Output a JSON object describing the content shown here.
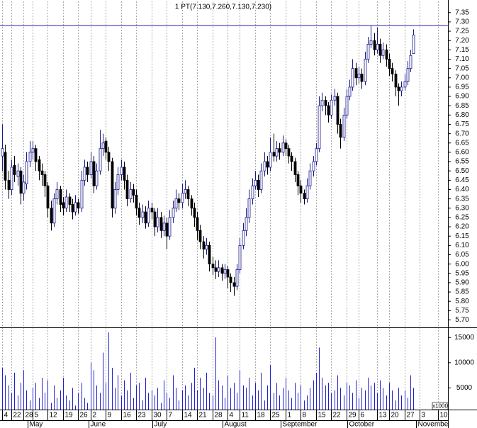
{
  "chart_data": {
    "type": "candlestick",
    "title": "1 PT(7.130,7.260,7.130,7.230)",
    "up_color": "#1a1a8c",
    "down_color": "#000000",
    "volume_color": "#2222cc",
    "reference_color": "#2020b0",
    "reference_line": 7.28,
    "ylim": [
      5.66,
      7.41
    ],
    "yticks": [
      {
        "value": 5.7,
        "label": "5.70"
      },
      5.75,
      {
        "value": 5.8,
        "label": "5.80"
      },
      5.85,
      {
        "value": 5.9,
        "label": "5.90"
      },
      5.95,
      {
        "value": 6,
        "label": "6.00"
      },
      6.05,
      {
        "value": 6.1,
        "label": "6.10"
      },
      6.15,
      {
        "value": 6.2,
        "label": "6.20"
      },
      6.25,
      {
        "value": 6.3,
        "label": "6.30"
      },
      6.35,
      {
        "value": 6.4,
        "label": "6.40"
      },
      6.45,
      {
        "value": 6.5,
        "label": "6.50"
      },
      6.55,
      {
        "value": 6.6,
        "label": "6.60"
      },
      6.65,
      {
        "value": 6.7,
        "label": "6.70"
      },
      6.75,
      {
        "value": 6.8,
        "label": "6.80"
      },
      6.85,
      {
        "value": 6.9,
        "label": "6.90"
      },
      6.95,
      {
        "value": 7,
        "label": "7.00"
      },
      7.05,
      {
        "value": 7.1,
        "label": "7.10"
      },
      7.15,
      {
        "value": 7.2,
        "label": "7.20"
      },
      7.25,
      {
        "value": 7.3,
        "label": "7.30"
      },
      7.35
    ],
    "y2lim": [
      0,
      17000
    ],
    "y2ticks": [
      5000,
      10000,
      15000
    ],
    "volume_unit": "x1000",
    "xlim": [
      -0.7,
      146.3
    ],
    "xticks": [
      {
        "value": 0,
        "label": "4"
      },
      {
        "value": 3,
        "label": "22"
      },
      {
        "value": 7,
        "label": "28"
      },
      {
        "value": 10,
        "label": "5"
      },
      {
        "value": 15,
        "label": "12"
      },
      {
        "value": 20,
        "label": "19"
      },
      {
        "value": 25,
        "label": "26"
      },
      {
        "value": 29,
        "label": "2"
      },
      {
        "value": 34,
        "label": "9"
      },
      {
        "value": 39,
        "label": "16"
      },
      {
        "value": 44,
        "label": "23"
      },
      {
        "value": 49,
        "label": "30"
      },
      {
        "value": 54,
        "label": "7"
      },
      {
        "value": 59,
        "label": "14"
      },
      {
        "value": 64,
        "label": "21"
      },
      {
        "value": 69,
        "label": "28"
      },
      {
        "value": 74,
        "label": "4"
      },
      {
        "value": 78,
        "label": "11"
      },
      {
        "value": 83,
        "label": "18"
      },
      {
        "value": 88,
        "label": "25"
      },
      {
        "value": 93,
        "label": "1"
      },
      {
        "value": 98,
        "label": "8"
      },
      {
        "value": 103,
        "label": "15"
      },
      {
        "value": 108,
        "label": "22"
      },
      {
        "value": 113,
        "label": "29"
      },
      {
        "value": 117,
        "label": "6"
      },
      {
        "value": 123,
        "label": "13"
      },
      {
        "value": 127,
        "label": "20"
      },
      {
        "value": 132,
        "label": "27"
      },
      {
        "value": 137,
        "label": "3"
      },
      {
        "value": 143,
        "label": "10"
      }
    ],
    "month_labels": [
      {
        "value": 9,
        "label": "May"
      },
      {
        "value": 29,
        "label": "June"
      },
      {
        "value": 50,
        "label": "July"
      },
      {
        "value": 73,
        "label": "August"
      },
      {
        "value": 92,
        "label": "September"
      },
      {
        "value": 114,
        "label": "October"
      },
      {
        "value": 136.5,
        "label": "Novembe"
      }
    ],
    "ohlc": [
      [
        6.58,
        6.75,
        6.5,
        6.62
      ],
      [
        6.6,
        6.64,
        6.4,
        6.45
      ],
      [
        6.45,
        6.5,
        6.35,
        6.4
      ],
      [
        6.4,
        6.56,
        6.37,
        6.52
      ],
      [
        6.53,
        6.58,
        6.44,
        6.48
      ],
      [
        6.47,
        6.54,
        6.42,
        6.5
      ],
      [
        6.5,
        6.52,
        6.32,
        6.38
      ],
      [
        6.38,
        6.48,
        6.34,
        6.44
      ],
      [
        6.43,
        6.6,
        6.4,
        6.55
      ],
      [
        6.55,
        6.66,
        6.52,
        6.6
      ],
      [
        6.6,
        6.66,
        6.56,
        6.62
      ],
      [
        6.62,
        6.64,
        6.5,
        6.55
      ],
      [
        6.56,
        6.58,
        6.45,
        6.5
      ],
      [
        6.5,
        6.54,
        6.42,
        6.48
      ],
      [
        6.48,
        6.5,
        6.36,
        6.42
      ],
      [
        6.42,
        6.44,
        6.25,
        6.3
      ],
      [
        6.3,
        6.34,
        6.18,
        6.22
      ],
      [
        6.22,
        6.38,
        6.2,
        6.35
      ],
      [
        6.35,
        6.44,
        6.32,
        6.4
      ],
      [
        6.4,
        6.42,
        6.28,
        6.32
      ],
      [
        6.33,
        6.36,
        6.26,
        6.3
      ],
      [
        6.3,
        6.4,
        6.28,
        6.36
      ],
      [
        6.36,
        6.38,
        6.28,
        6.32
      ],
      [
        6.32,
        6.35,
        6.24,
        6.28
      ],
      [
        6.28,
        6.37,
        6.26,
        6.33
      ],
      [
        6.33,
        6.35,
        6.27,
        6.3
      ],
      [
        6.3,
        6.5,
        6.28,
        6.45
      ],
      [
        6.45,
        6.56,
        6.42,
        6.52
      ],
      [
        6.52,
        6.55,
        6.44,
        6.48
      ],
      [
        6.48,
        6.6,
        6.46,
        6.55
      ],
      [
        6.55,
        6.58,
        6.38,
        6.42
      ],
      [
        6.42,
        6.54,
        6.4,
        6.5
      ],
      [
        6.5,
        6.72,
        6.48,
        6.62
      ],
      [
        6.62,
        6.7,
        6.58,
        6.65
      ],
      [
        6.66,
        6.68,
        6.56,
        6.6
      ],
      [
        6.6,
        6.63,
        6.5,
        6.55
      ],
      [
        6.55,
        6.57,
        6.25,
        6.3
      ],
      [
        6.3,
        6.44,
        6.27,
        6.4
      ],
      [
        6.4,
        6.52,
        6.37,
        6.48
      ],
      [
        6.48,
        6.56,
        6.45,
        6.52
      ],
      [
        6.52,
        6.55,
        6.4,
        6.45
      ],
      [
        6.45,
        6.48,
        6.31,
        6.35
      ],
      [
        6.35,
        6.44,
        6.33,
        6.4
      ],
      [
        6.4,
        6.43,
        6.33,
        6.37
      ],
      [
        6.37,
        6.4,
        6.26,
        6.3
      ],
      [
        6.3,
        6.33,
        6.21,
        6.25
      ],
      [
        6.25,
        6.32,
        6.22,
        6.28
      ],
      [
        6.28,
        6.31,
        6.19,
        6.22
      ],
      [
        6.22,
        6.34,
        6.2,
        6.3
      ],
      [
        6.3,
        6.33,
        6.24,
        6.28
      ],
      [
        6.28,
        6.3,
        6.15,
        6.2
      ],
      [
        6.2,
        6.3,
        6.17,
        6.25
      ],
      [
        6.25,
        6.28,
        6.14,
        6.18
      ],
      [
        6.18,
        6.26,
        6.15,
        6.22
      ],
      [
        6.22,
        6.25,
        6.08,
        6.15
      ],
      [
        6.15,
        6.29,
        6.13,
        6.25
      ],
      [
        6.25,
        6.34,
        6.22,
        6.3
      ],
      [
        6.3,
        6.4,
        6.28,
        6.35
      ],
      [
        6.35,
        6.38,
        6.29,
        6.33
      ],
      [
        6.33,
        6.43,
        6.3,
        6.38
      ],
      [
        6.38,
        6.45,
        6.35,
        6.4
      ],
      [
        6.4,
        6.42,
        6.31,
        6.35
      ],
      [
        6.35,
        6.37,
        6.26,
        6.3
      ],
      [
        6.3,
        6.33,
        6.2,
        6.25
      ],
      [
        6.25,
        6.28,
        6.13,
        6.18
      ],
      [
        6.18,
        6.21,
        6.08,
        6.12
      ],
      [
        6.12,
        6.15,
        6.03,
        6.08
      ],
      [
        6.08,
        6.14,
        6.05,
        6.1
      ],
      [
        6.1,
        6.12,
        5.96,
        6.0
      ],
      [
        6.0,
        6.04,
        5.94,
        5.98
      ],
      [
        5.98,
        6.02,
        5.92,
        5.96
      ],
      [
        5.96,
        6.02,
        5.93,
        5.98
      ],
      [
        5.98,
        6.0,
        5.91,
        5.95
      ],
      [
        5.95,
        6.0,
        5.92,
        5.97
      ],
      [
        5.97,
        5.99,
        5.87,
        5.93
      ],
      [
        5.93,
        5.95,
        5.85,
        5.9
      ],
      [
        5.9,
        5.93,
        5.83,
        5.88
      ],
      [
        5.88,
        6.0,
        5.86,
        5.97
      ],
      [
        5.97,
        6.14,
        5.95,
        6.1
      ],
      [
        6.1,
        6.22,
        6.08,
        6.18
      ],
      [
        6.18,
        6.3,
        6.15,
        6.25
      ],
      [
        6.25,
        6.4,
        6.22,
        6.35
      ],
      [
        6.35,
        6.46,
        6.32,
        6.42
      ],
      [
        6.42,
        6.5,
        6.4,
        6.45
      ],
      [
        6.45,
        6.48,
        6.36,
        6.4
      ],
      [
        6.4,
        6.54,
        6.38,
        6.5
      ],
      [
        6.5,
        6.6,
        6.47,
        6.55
      ],
      [
        6.55,
        6.58,
        6.48,
        6.52
      ],
      [
        6.52,
        6.68,
        6.5,
        6.6
      ],
      [
        6.6,
        6.7,
        6.55,
        6.58
      ],
      [
        6.58,
        6.66,
        6.55,
        6.62
      ],
      [
        6.62,
        6.65,
        6.56,
        6.6
      ],
      [
        6.6,
        6.69,
        6.58,
        6.65
      ],
      [
        6.65,
        6.67,
        6.58,
        6.62
      ],
      [
        6.62,
        6.64,
        6.54,
        6.58
      ],
      [
        6.58,
        6.6,
        6.5,
        6.55
      ],
      [
        6.55,
        6.57,
        6.44,
        6.48
      ],
      [
        6.48,
        6.5,
        6.37,
        6.42
      ],
      [
        6.42,
        6.45,
        6.33,
        6.38
      ],
      [
        6.38,
        6.4,
        6.32,
        6.35
      ],
      [
        6.35,
        6.46,
        6.33,
        6.42
      ],
      [
        6.42,
        6.54,
        6.4,
        6.5
      ],
      [
        6.5,
        6.58,
        6.47,
        6.55
      ],
      [
        6.55,
        6.65,
        6.53,
        6.62
      ],
      [
        6.62,
        6.9,
        6.6,
        6.85
      ],
      [
        6.85,
        6.92,
        6.82,
        6.88
      ],
      [
        6.88,
        6.9,
        6.8,
        6.85
      ],
      [
        6.85,
        6.87,
        6.76,
        6.8
      ],
      [
        6.8,
        6.91,
        6.78,
        6.88
      ],
      [
        6.88,
        6.94,
        6.85,
        6.9
      ],
      [
        6.9,
        6.92,
        6.7,
        6.75
      ],
      [
        6.75,
        6.78,
        6.62,
        6.68
      ],
      [
        6.68,
        6.84,
        6.66,
        6.8
      ],
      [
        6.8,
        6.94,
        6.78,
        6.9
      ],
      [
        6.9,
        6.99,
        6.88,
        6.95
      ],
      [
        6.95,
        7.1,
        6.93,
        7.05
      ],
      [
        7.05,
        7.08,
        6.96,
        7.0
      ],
      [
        7.0,
        7.06,
        6.97,
        7.02
      ],
      [
        7.02,
        7.05,
        6.94,
        6.98
      ],
      [
        6.98,
        7.14,
        6.96,
        7.1
      ],
      [
        7.1,
        7.22,
        7.08,
        7.18
      ],
      [
        7.18,
        7.28,
        7.16,
        7.2
      ],
      [
        7.2,
        7.24,
        7.12,
        7.15
      ],
      [
        7.15,
        7.27,
        7.13,
        7.18
      ],
      [
        7.18,
        7.21,
        7.08,
        7.12
      ],
      [
        7.12,
        7.19,
        7.1,
        7.15
      ],
      [
        7.15,
        7.18,
        7.06,
        7.1
      ],
      [
        7.1,
        7.13,
        7.01,
        7.05
      ],
      [
        7.05,
        7.08,
        6.98,
        7.02
      ],
      [
        7.02,
        7.04,
        6.9,
        6.95
      ],
      [
        6.95,
        6.97,
        6.85,
        6.93
      ],
      [
        6.93,
        6.98,
        6.9,
        6.95
      ],
      [
        6.95,
        7.02,
        6.93,
        6.98
      ],
      [
        6.98,
        7.09,
        6.96,
        7.05
      ],
      [
        7.05,
        7.15,
        7.03,
        7.12
      ],
      [
        7.13,
        7.26,
        7.13,
        7.23
      ]
    ],
    "volume": [
      9000,
      7500,
      5500,
      4000,
      8000,
      3500,
      6000,
      8500,
      4500,
      2500,
      5000,
      6000,
      3000,
      7000,
      4000,
      6500,
      2000,
      5500,
      3000,
      4500,
      7000,
      3500,
      2500,
      5000,
      1500,
      4000,
      6000,
      3000,
      2000,
      10000,
      8500,
      5500,
      4000,
      12000,
      6000,
      16000,
      9000,
      5000,
      7500,
      3500,
      6500,
      4500,
      8000,
      3000,
      5500,
      6000,
      2500,
      7000,
      4000,
      4500,
      3500,
      5000,
      2000,
      6500,
      4000,
      3000,
      7500,
      5000,
      2500,
      4500,
      5500,
      3500,
      6000,
      9000,
      4500,
      7000,
      5000,
      8000,
      4000,
      3500,
      15000,
      6500,
      5500,
      3000,
      7500,
      5000,
      6000,
      4000,
      8500,
      5500,
      5000,
      7000,
      3500,
      6000,
      4500,
      8000,
      2500,
      5500,
      9500,
      4000,
      6000,
      3500,
      5000,
      7000,
      4500,
      3000,
      6000,
      4000,
      5500,
      2500,
      3500,
      5000,
      6500,
      8000,
      13000,
      7000,
      5500,
      6000,
      4000,
      4500,
      7500,
      5000,
      3500,
      6000,
      5500,
      4000,
      6500,
      3000,
      5000,
      4500,
      7000,
      5500,
      6000,
      4000,
      6500,
      5000,
      3500,
      6000,
      4500,
      2500,
      5000,
      3500,
      4500,
      3000,
      7500,
      5000
    ]
  }
}
